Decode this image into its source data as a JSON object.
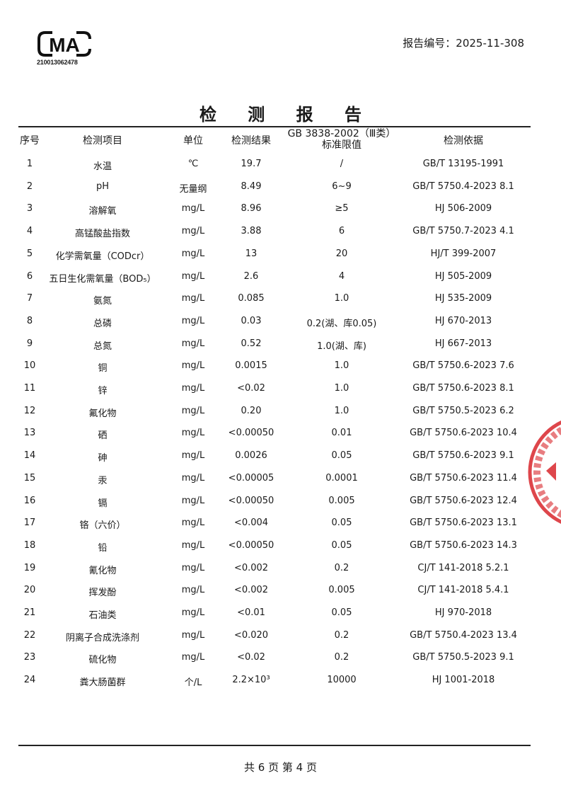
{
  "header": {
    "logo_text": "CMA",
    "logo_number": "210013062478",
    "report_number_label": "报告编号：2025-11-308"
  },
  "title": "检 测 报 告",
  "table": {
    "columns": [
      "序号",
      "检测项目",
      "单位",
      "检测结果",
      "GB 3838-2002（Ⅲ类）",
      "检测依据"
    ],
    "column_4_line2": "标准限值",
    "rows": [
      [
        "1",
        "水温",
        "℃",
        "19.7",
        "/",
        "GB/T 13195-1991"
      ],
      [
        "2",
        "pH",
        "无量纲",
        "8.49",
        "6~9",
        "GB/T 5750.4-2023 8.1"
      ],
      [
        "3",
        "溶解氧",
        "mg/L",
        "8.96",
        "≥5",
        "HJ 506-2009"
      ],
      [
        "4",
        "高锰酸盐指数",
        "mg/L",
        "3.88",
        "6",
        "GB/T 5750.7-2023 4.1"
      ],
      [
        "5",
        "化学需氧量（CODcr）",
        "mg/L",
        "13",
        "20",
        "HJ/T 399-2007"
      ],
      [
        "6",
        "五日生化需氧量（BOD₅）",
        "mg/L",
        "2.6",
        "4",
        "HJ 505-2009"
      ],
      [
        "7",
        "氨氮",
        "mg/L",
        "0.085",
        "1.0",
        "HJ 535-2009"
      ],
      [
        "8",
        "总磷",
        "mg/L",
        "0.03",
        "0.2(湖、库0.05)",
        "HJ 670-2013"
      ],
      [
        "9",
        "总氮",
        "mg/L",
        "0.52",
        "1.0(湖、库)",
        "HJ 667-2013"
      ],
      [
        "10",
        "铜",
        "mg/L",
        "0.0015",
        "1.0",
        "GB/T 5750.6-2023 7.6"
      ],
      [
        "11",
        "锌",
        "mg/L",
        "<0.02",
        "1.0",
        "GB/T 5750.6-2023 8.1"
      ],
      [
        "12",
        "氟化物",
        "mg/L",
        "0.20",
        "1.0",
        "GB/T 5750.5-2023 6.2"
      ],
      [
        "13",
        "硒",
        "mg/L",
        "<0.00050",
        "0.01",
        "GB/T 5750.6-2023 10.4"
      ],
      [
        "14",
        "砷",
        "mg/L",
        "0.0026",
        "0.05",
        "GB/T 5750.6-2023 9.1"
      ],
      [
        "15",
        "汞",
        "mg/L",
        "<0.00005",
        "0.0001",
        "GB/T 5750.6-2023 11.4"
      ],
      [
        "16",
        "镉",
        "mg/L",
        "<0.00050",
        "0.005",
        "GB/T 5750.6-2023 12.4"
      ],
      [
        "17",
        "铬（六价）",
        "mg/L",
        "<0.004",
        "0.05",
        "GB/T 5750.6-2023 13.1"
      ],
      [
        "18",
        "铅",
        "mg/L",
        "<0.00050",
        "0.05",
        "GB/T 5750.6-2023 14.3"
      ],
      [
        "19",
        "氰化物",
        "mg/L",
        "<0.002",
        "0.2",
        "CJ/T 141-2018 5.2.1"
      ],
      [
        "20",
        "挥发酚",
        "mg/L",
        "<0.002",
        "0.005",
        "CJ/T 141-2018 5.4.1"
      ],
      [
        "21",
        "石油类",
        "mg/L",
        "<0.01",
        "0.05",
        "HJ 970-2018"
      ],
      [
        "22",
        "阴离子合成洗涤剂",
        "mg/L",
        "<0.020",
        "0.2",
        "GB/T 5750.4-2023 13.4"
      ],
      [
        "23",
        "硫化物",
        "mg/L",
        "<0.02",
        "0.2",
        "GB/T 5750.5-2023 9.1"
      ],
      [
        "24",
        "粪大肠菌群",
        "个/L",
        "2.2×10³",
        "10000",
        "HJ 1001-2018"
      ]
    ]
  },
  "footer": "共 6 页   第 4 页",
  "colors": {
    "text": "#1a1a1a",
    "stamp": "#d8262b"
  }
}
